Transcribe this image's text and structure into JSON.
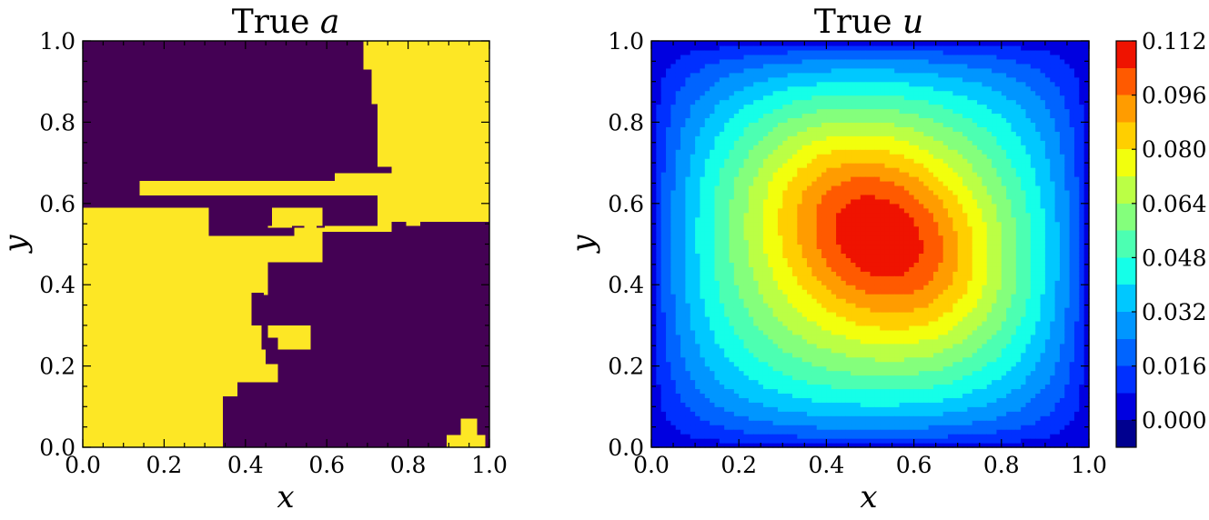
{
  "chart_data": [
    {
      "type": "heatmap",
      "title": "True a",
      "title_text": "True ",
      "title_var": "a",
      "xlabel": "x",
      "ylabel": "y",
      "xlim": [
        0.0,
        1.0
      ],
      "ylim": [
        0.0,
        1.0
      ],
      "xticks": [
        "0.0",
        "0.2",
        "0.4",
        "0.6",
        "0.8",
        "1.0"
      ],
      "yticks": [
        "0.0",
        "0.2",
        "0.4",
        "0.6",
        "0.8",
        "1.0"
      ],
      "values": [
        0,
        1
      ],
      "colors": {
        "0": "#440154",
        "1": "#fde725"
      },
      "grid": false,
      "cell_size": 0.0345,
      "low_cells": [
        [
          0.0,
          0.655,
          0.62,
          1.0
        ],
        [
          0.62,
          0.93,
          0.69,
          1.0
        ],
        [
          0.62,
          0.845,
          0.71,
          0.93
        ],
        [
          0.62,
          0.795,
          0.725,
          0.845
        ],
        [
          0.62,
          0.69,
          0.725,
          0.795
        ],
        [
          0.62,
          0.675,
          0.76,
          0.69
        ],
        [
          0.0,
          0.62,
          0.14,
          0.655
        ],
        [
          0.0,
          0.59,
          0.725,
          0.62
        ],
        [
          0.31,
          0.545,
          0.725,
          0.59
        ],
        [
          0.31,
          0.54,
          0.595,
          0.545
        ],
        [
          0.31,
          0.52,
          0.52,
          0.54
        ],
        [
          0.36,
          0.52,
          0.455,
          0.54
        ],
        [
          0.54,
          0.545,
          0.615,
          0.59
        ],
        [
          0.54,
          0.575,
          0.69,
          0.59
        ],
        [
          0.345,
          0.0,
          1.0,
          0.085
        ],
        [
          0.38,
          0.0,
          1.0,
          0.125
        ],
        [
          0.415,
          0.0,
          1.0,
          0.16
        ],
        [
          0.48,
          0.0,
          1.0,
          0.205
        ],
        [
          0.51,
          0.0,
          1.0,
          0.24
        ],
        [
          0.56,
          0.0,
          1.0,
          0.3
        ],
        [
          0.6,
          0.0,
          1.0,
          0.4
        ],
        [
          0.69,
          0.0,
          1.0,
          0.45
        ],
        [
          0.725,
          0.0,
          1.0,
          0.5
        ],
        [
          0.76,
          0.0,
          1.0,
          0.545
        ],
        [
          0.83,
          0.0,
          1.0,
          0.555
        ],
        [
          0.76,
          0.53,
          0.795,
          0.555
        ],
        [
          0.83,
          0.555,
          1.0,
          0.555
        ],
        [
          0.455,
          0.3,
          0.6,
          0.4
        ],
        [
          0.455,
          0.4,
          0.59,
          0.455
        ],
        [
          0.415,
          0.3,
          0.455,
          0.375
        ],
        [
          0.415,
          0.375,
          0.445,
          0.38
        ],
        [
          0.44,
          0.27,
          0.455,
          0.3
        ],
        [
          0.59,
          0.4,
          0.69,
          0.45
        ],
        [
          0.59,
          0.45,
          0.725,
          0.5
        ],
        [
          0.59,
          0.5,
          0.76,
          0.53
        ],
        [
          0.44,
          0.24,
          0.48,
          0.27
        ],
        [
          0.45,
          0.205,
          0.51,
          0.24
        ],
        [
          0.38,
          0.125,
          0.415,
          0.16
        ],
        [
          0.345,
          0.085,
          0.38,
          0.125
        ]
      ],
      "high_cells": [
        [
          0.895,
          0.0,
          0.99,
          0.03
        ],
        [
          0.93,
          0.0,
          0.97,
          0.07
        ],
        [
          0.465,
          0.545,
          0.59,
          0.59
        ],
        [
          0.455,
          0.54,
          0.515,
          0.545
        ],
        [
          0.545,
          0.52,
          0.575,
          0.545
        ],
        [
          0.445,
          0.455,
          0.53,
          0.52
        ]
      ]
    },
    {
      "type": "heatmap",
      "title": "True u",
      "title_text": "True ",
      "title_var": "u",
      "xlabel": "x",
      "ylabel": "y",
      "xlim": [
        0.0,
        1.0
      ],
      "ylim": [
        0.0,
        1.0
      ],
      "xticks": [
        "0.0",
        "0.2",
        "0.4",
        "0.6",
        "0.8",
        "1.0"
      ],
      "yticks": [
        "0.0",
        "0.2",
        "0.4",
        "0.6",
        "0.8",
        "1.0"
      ],
      "grid": false,
      "colorbar": {
        "ticks": [
          "0.000",
          "0.016",
          "0.032",
          "0.048",
          "0.064",
          "0.080",
          "0.096",
          "0.112"
        ],
        "levels": [
          -0.008,
          0.0,
          0.008,
          0.016,
          0.024,
          0.032,
          0.04,
          0.048,
          0.056,
          0.064,
          0.072,
          0.08,
          0.088,
          0.096,
          0.104,
          0.112
        ],
        "colors": [
          "#00008f",
          "#0000e0",
          "#0030ff",
          "#0064ff",
          "#0096ff",
          "#00c8ff",
          "#15ffe8",
          "#4cffb2",
          "#84ff7c",
          "#bbff45",
          "#f2ff0d",
          "#ffcf00",
          "#ff9c00",
          "#ff5a00",
          "#ef1300",
          "#a10000"
        ]
      },
      "field": {
        "peak_value": 0.112,
        "peak_location": [
          0.53,
          0.53
        ],
        "elongation": "diagonal, upper-left to lower-right"
      }
    }
  ]
}
